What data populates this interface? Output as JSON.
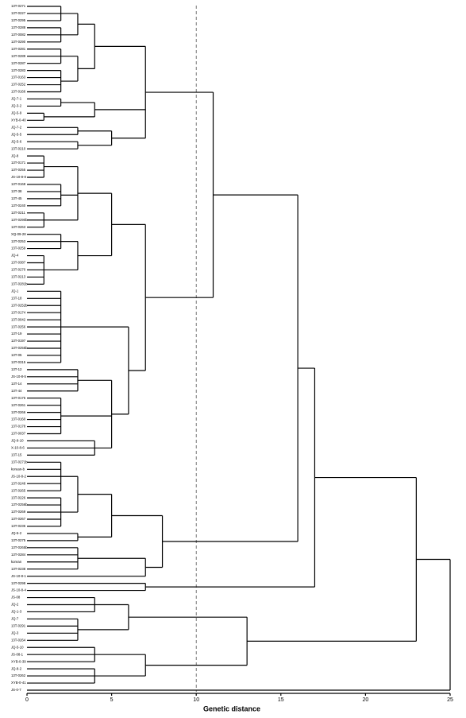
{
  "chart_data": {
    "type": "dendrogram",
    "x_label": "Genetic  distance",
    "xlim": [
      0,
      25
    ],
    "xticks": [
      0,
      5,
      10,
      15,
      20,
      25
    ],
    "refline": 10,
    "tree": {
      "h": 25,
      "c": [
        {
          "h": 23,
          "c": [
            {
              "h": 17,
              "c": [
                {
                  "h": 16,
                  "c": [
                    {
                      "h": 11,
                      "c": [
                        {
                          "h": 7,
                          "c": [
                            {
                              "h": 4,
                              "c": [
                                {
                                  "h": 3,
                                  "c": [
                                    {
                                      "h": 2,
                                      "c": [
                                        "13T-0271",
                                        "13T-0227",
                                        "13T-0295"
                                      ]
                                    },
                                    {
                                      "h": 2,
                                      "c": [
                                        "13T-0288",
                                        "13T-0082",
                                        "13T-0290"
                                      ]
                                    }
                                  ]
                                },
                                {
                                  "h": 3,
                                  "c": [
                                    {
                                      "h": 2,
                                      "c": [
                                        "13T-0281",
                                        "13T-0289",
                                        "13T-0287"
                                      ]
                                    },
                                    {
                                      "h": 2,
                                      "c": [
                                        "13T-0283",
                                        "13T-0163",
                                        "13T-0252",
                                        "13T-0166"
                                      ]
                                    }
                                  ]
                                }
                              ]
                            },
                            {
                              "h": 4,
                              "c": [
                                {
                                  "h": 2,
                                  "c": [
                                    "JQ-7-1",
                                    "JQ-3-2"
                                  ]
                                },
                                {
                                  "h": 1,
                                  "c": [
                                    "JQ-5-9",
                                    "XYB-0-40"
                                  ]
                                }
                              ]
                            },
                            {
                              "h": 5,
                              "c": [
                                {
                                  "h": 3,
                                  "c": [
                                    "JQ-7-2",
                                    "JQ-5-5"
                                  ]
                                },
                                {
                                  "h": 3,
                                  "c": [
                                    "JQ-5-6",
                                    "13T-0210"
                                  ]
                                }
                              ]
                            }
                          ]
                        },
                        {
                          "h": 7,
                          "c": [
                            {
                              "h": 5,
                              "c": [
                                {
                                  "h": 3,
                                  "c": [
                                    {
                                      "h": 1,
                                      "c": [
                                        "JQ-8",
                                        "13T-0171",
                                        "13T-0255",
                                        "JS-10-8-8"
                                      ]
                                    },
                                    {
                                      "h": 2,
                                      "c": [
                                        "13T-0168",
                                        "13T-38",
                                        "13T-45",
                                        "13T-0240"
                                      ]
                                    },
                                    {
                                      "h": 1,
                                      "c": [
                                        "13T-0211",
                                        "13T-0290b",
                                        "13T-0263"
                                      ]
                                    }
                                  ]
                                },
                                {
                                  "h": 3,
                                  "c": [
                                    {
                                      "h": 2,
                                      "c": [
                                        "XQ-09-28",
                                        "13T-0253",
                                        "13T-0259"
                                      ]
                                    },
                                    {
                                      "h": 1,
                                      "c": [
                                        "JQ-4",
                                        "13T-0387",
                                        "13T-0270",
                                        "13T-0213",
                                        "13T-0281b"
                                      ]
                                    }
                                  ]
                                }
                              ]
                            },
                            {
                              "h": 6,
                              "c": [
                                {
                                  "h": 2,
                                  "c": [
                                    "JQ-1",
                                    "13T-18",
                                    "13T-0252b",
                                    "13T-0174",
                                    "13T-0042",
                                    "13T-0256",
                                    "13T-19",
                                    "13T-0197",
                                    "13T-0255b",
                                    "13T-05",
                                    "13T-0315"
                                  ]
                                },
                                {
                                  "h": 5,
                                  "c": [
                                    {
                                      "h": 3,
                                      "c": [
                                        "13T-12",
                                        "JS-10-8-5",
                                        "13T-14",
                                        "13T-44"
                                      ]
                                    },
                                    {
                                      "h": 2,
                                      "c": [
                                        "13T-0175",
                                        "13T-0261",
                                        "13T-0266",
                                        "13T-0160",
                                        "13T-0178",
                                        "13T-0037"
                                      ]
                                    },
                                    {
                                      "h": 4,
                                      "c": [
                                        "JQ-9-10",
                                        "X-10-8-6",
                                        "13T-15"
                                      ]
                                    }
                                  ]
                                }
                              ]
                            }
                          ]
                        }
                      ]
                    },
                    {
                      "h": 8,
                      "c": [
                        {
                          "h": 5,
                          "c": [
                            {
                              "h": 3,
                              "c": [
                                {
                                  "h": 2,
                                  "c": [
                                    "13T-0271b",
                                    "korean-b",
                                    "JS-10-8-2",
                                    "13T-0248",
                                    "13T-0265"
                                  ]
                                },
                                {
                                  "h": 2,
                                  "c": [
                                    "13T-0226",
                                    "13T-0256b",
                                    "13T-0269",
                                    "13T-0267",
                                    "13T-0236"
                                  ]
                                }
                              ]
                            },
                            {
                              "h": 3,
                              "c": [
                                "JQ-5-2",
                                "13T-0275"
                              ]
                            }
                          ]
                        },
                        {
                          "h": 7,
                          "c": [
                            {
                              "h": 3,
                              "c": [
                                "13T-0265b",
                                "13T-0284",
                                "korean",
                                "13T-0238"
                              ]
                            },
                            "JS-10-8-1"
                          ]
                        }
                      ]
                    }
                  ]
                },
                {
                  "h": 7,
                  "c": [
                    "13T-0298",
                    "JS-10-8-4"
                  ]
                }
              ]
            },
            {
              "h": 13,
              "c": [
                {
                  "h": 6,
                  "c": [
                    {
                      "h": 4,
                      "c": [
                        "JS-08",
                        "JQ-2",
                        "JQ-1-3"
                      ]
                    },
                    {
                      "h": 3,
                      "c": [
                        "JQ-7",
                        "13T-0291",
                        "JQ-3",
                        "13T-0264"
                      ]
                    }
                  ]
                },
                {
                  "h": 7,
                  "c": [
                    {
                      "h": 4,
                      "c": [
                        "JQ-5-10",
                        "JS-08-1",
                        "XYB-0-39"
                      ]
                    },
                    {
                      "h": 4,
                      "c": [
                        "JQ-8-2",
                        "13T-0262",
                        "XYB-0-41"
                      ]
                    }
                  ]
                }
              ]
            }
          ]
        },
        "JS-0-7"
      ]
    }
  }
}
